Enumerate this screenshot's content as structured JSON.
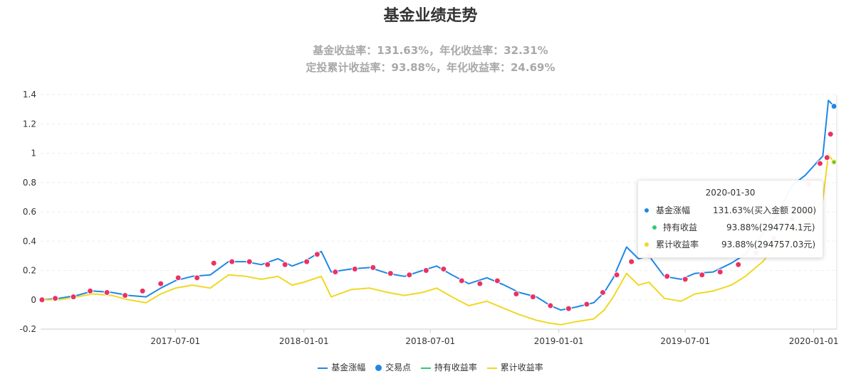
{
  "title": "基金业绩走势",
  "subtitle_line1": "基金收益率：131.63%，年化收益率：32.31%",
  "subtitle_line2": "定投累计收益率：93.88%，年化收益率：24.69%",
  "colors": {
    "fund": "#1e88e5",
    "trade": "#ea3263",
    "hold": "#2ecc71",
    "cumulative": "#f0d824"
  },
  "legend": [
    {
      "label": "基金涨幅",
      "type": "line",
      "color": "#1e88e5"
    },
    {
      "label": "交易点",
      "type": "dot",
      "color": "#1e88e5"
    },
    {
      "label": "持有收益率",
      "type": "line",
      "color": "#2ecc71"
    },
    {
      "label": "累计收益率",
      "type": "line",
      "color": "#f0d824"
    }
  ],
  "tooltip": {
    "date": "2020-01-30",
    "rows": [
      {
        "label": "基金涨幅",
        "value": "131.63%(买入金额 2000)",
        "color": "#1e88e5"
      },
      {
        "label": "持有收益",
        "value": "93.88%(294774.1元)",
        "color": "#2ecc71"
      },
      {
        "label": "累计收益率",
        "value": "93.88%(294757.03元)",
        "color": "#f0d824"
      }
    ]
  },
  "chart_data": {
    "type": "line",
    "x_ticks": [
      "2017-07-01",
      "2018-01-01",
      "2018-07-01",
      "2019-01-01",
      "2019-07-01",
      "2020-01-01"
    ],
    "y_ticks": [
      "-0.2",
      "0",
      "0.2",
      "0.4",
      "0.6",
      "0.8",
      "1",
      "1.2",
      "1.4"
    ],
    "xlim": [
      "2016-12-20",
      "2020-02-03"
    ],
    "ylim": [
      -0.2,
      1.4
    ],
    "grid": true,
    "legend_position": "bottom",
    "series": [
      {
        "name": "基金涨幅",
        "x": [
          "2016-12-22",
          "2017-01-15",
          "2017-02-10",
          "2017-03-05",
          "2017-04-01",
          "2017-04-25",
          "2017-05-20",
          "2017-06-10",
          "2017-07-01",
          "2017-07-25",
          "2017-08-20",
          "2017-09-15",
          "2017-10-10",
          "2017-11-01",
          "2017-11-25",
          "2017-12-15",
          "2018-01-01",
          "2018-01-26",
          "2018-02-09",
          "2018-03-10",
          "2018-04-05",
          "2018-05-01",
          "2018-05-25",
          "2018-06-20",
          "2018-07-10",
          "2018-08-01",
          "2018-08-25",
          "2018-09-20",
          "2018-10-15",
          "2018-11-05",
          "2018-11-30",
          "2018-12-20",
          "2019-01-04",
          "2019-01-25",
          "2019-02-20",
          "2019-03-07",
          "2019-03-20",
          "2019-04-08",
          "2019-04-25",
          "2019-05-10",
          "2019-06-01",
          "2019-06-25",
          "2019-07-15",
          "2019-08-10",
          "2019-09-05",
          "2019-09-25",
          "2019-10-20",
          "2019-11-10",
          "2019-12-01",
          "2019-12-20",
          "2020-01-08",
          "2020-01-14",
          "2020-01-22",
          "2020-01-30"
        ],
        "y": [
          0.0,
          0.01,
          0.03,
          0.06,
          0.05,
          0.03,
          0.02,
          0.08,
          0.13,
          0.16,
          0.17,
          0.26,
          0.26,
          0.24,
          0.28,
          0.23,
          0.26,
          0.33,
          0.19,
          0.21,
          0.22,
          0.18,
          0.16,
          0.2,
          0.23,
          0.17,
          0.11,
          0.15,
          0.1,
          0.05,
          0.02,
          -0.04,
          -0.07,
          -0.05,
          -0.02,
          0.05,
          0.15,
          0.36,
          0.28,
          0.3,
          0.16,
          0.14,
          0.18,
          0.19,
          0.25,
          0.31,
          0.45,
          0.58,
          0.78,
          0.85,
          0.95,
          0.98,
          1.36,
          1.32
        ]
      },
      {
        "name": "累计收益率",
        "x": [
          "2016-12-22",
          "2017-01-15",
          "2017-02-10",
          "2017-03-05",
          "2017-04-01",
          "2017-04-25",
          "2017-05-20",
          "2017-06-10",
          "2017-07-01",
          "2017-07-25",
          "2017-08-20",
          "2017-09-15",
          "2017-10-10",
          "2017-11-01",
          "2017-11-25",
          "2017-12-15",
          "2018-01-01",
          "2018-01-26",
          "2018-02-09",
          "2018-03-10",
          "2018-04-05",
          "2018-05-01",
          "2018-05-25",
          "2018-06-20",
          "2018-07-10",
          "2018-08-01",
          "2018-08-25",
          "2018-09-20",
          "2018-10-15",
          "2018-11-05",
          "2018-11-30",
          "2018-12-20",
          "2019-01-04",
          "2019-01-25",
          "2019-02-20",
          "2019-03-07",
          "2019-03-20",
          "2019-04-08",
          "2019-04-25",
          "2019-05-10",
          "2019-06-01",
          "2019-06-25",
          "2019-07-15",
          "2019-08-10",
          "2019-09-05",
          "2019-09-25",
          "2019-10-20",
          "2019-11-10",
          "2019-12-01",
          "2019-12-20",
          "2020-01-08",
          "2020-01-14",
          "2020-01-22",
          "2020-01-30"
        ],
        "y": [
          0.0,
          0.0,
          0.02,
          0.04,
          0.03,
          0.0,
          -0.02,
          0.04,
          0.08,
          0.1,
          0.08,
          0.17,
          0.16,
          0.14,
          0.16,
          0.1,
          0.12,
          0.16,
          0.02,
          0.07,
          0.08,
          0.05,
          0.03,
          0.05,
          0.08,
          0.02,
          -0.04,
          -0.01,
          -0.06,
          -0.1,
          -0.14,
          -0.16,
          -0.17,
          -0.15,
          -0.13,
          -0.07,
          0.02,
          0.18,
          0.1,
          0.12,
          0.01,
          -0.01,
          0.04,
          0.06,
          0.1,
          0.16,
          0.26,
          0.38,
          0.48,
          0.55,
          0.65,
          0.68,
          0.99,
          0.94
        ]
      },
      {
        "name": "持有收益率",
        "x": [
          "2020-01-30"
        ],
        "y": [
          0.9388
        ]
      },
      {
        "name": "交易点",
        "x": [
          "2016-12-22",
          "2017-01-10",
          "2017-02-05",
          "2017-03-01",
          "2017-03-25",
          "2017-04-20",
          "2017-05-15",
          "2017-06-10",
          "2017-07-05",
          "2017-08-01",
          "2017-08-25",
          "2017-09-20",
          "2017-10-15",
          "2017-11-10",
          "2017-12-05",
          "2018-01-05",
          "2018-01-20",
          "2018-02-15",
          "2018-03-15",
          "2018-04-10",
          "2018-05-05",
          "2018-06-01",
          "2018-06-25",
          "2018-07-20",
          "2018-08-15",
          "2018-09-10",
          "2018-10-05",
          "2018-11-01",
          "2018-11-25",
          "2018-12-20",
          "2019-01-15",
          "2019-02-10",
          "2019-03-05",
          "2019-03-25",
          "2019-04-15",
          "2019-05-10",
          "2019-06-05",
          "2019-07-01",
          "2019-07-25",
          "2019-08-20",
          "2019-09-15",
          "2019-10-10",
          "2019-11-05",
          "2019-12-01",
          "2019-12-25",
          "2020-01-10",
          "2020-01-20",
          "2020-01-25"
        ],
        "y": [
          0.0,
          0.01,
          0.02,
          0.06,
          0.05,
          0.03,
          0.06,
          0.11,
          0.15,
          0.15,
          0.25,
          0.26,
          0.26,
          0.24,
          0.24,
          0.26,
          0.31,
          0.19,
          0.21,
          0.22,
          0.18,
          0.17,
          0.2,
          0.21,
          0.13,
          0.11,
          0.13,
          0.04,
          0.02,
          -0.04,
          -0.06,
          -0.03,
          0.05,
          0.17,
          0.26,
          0.3,
          0.16,
          0.14,
          0.17,
          0.19,
          0.24,
          0.32,
          0.42,
          0.55,
          0.79,
          0.93,
          0.97,
          1.13
        ]
      }
    ]
  }
}
